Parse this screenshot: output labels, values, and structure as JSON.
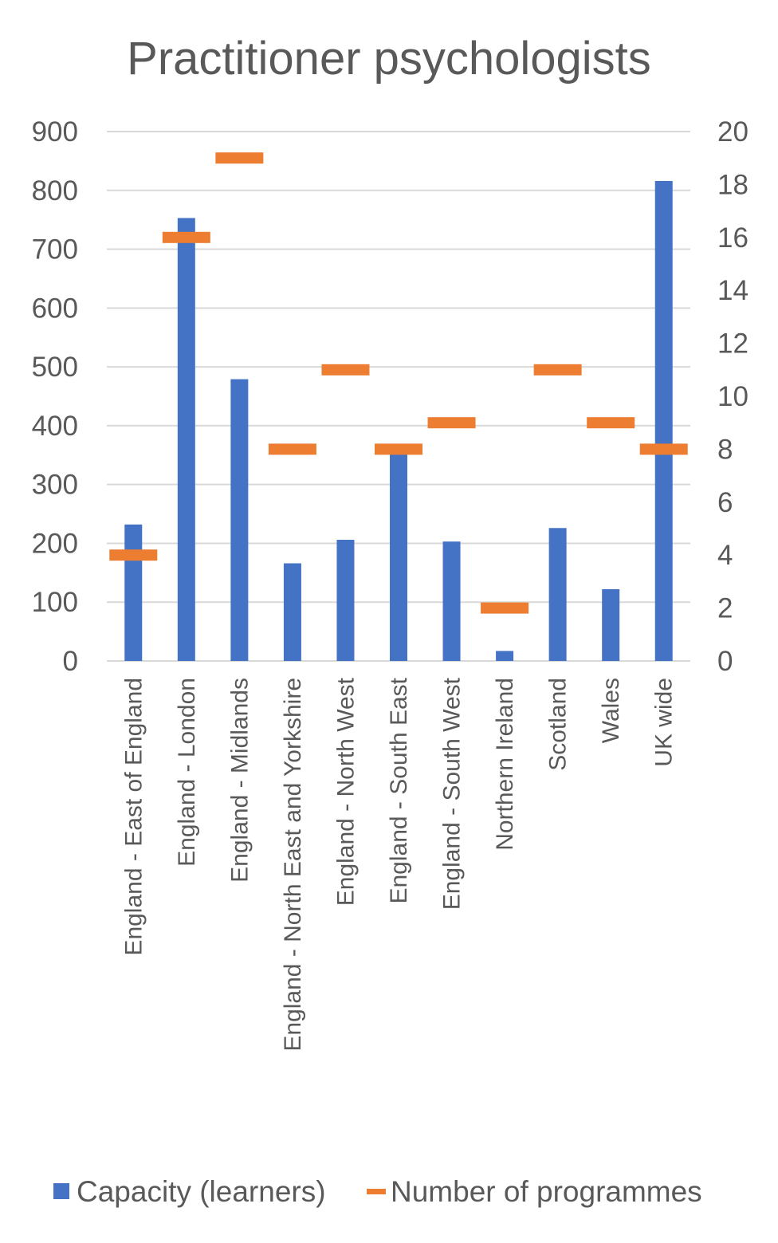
{
  "chart_data": {
    "type": "bar",
    "title": "Practitioner psychologists",
    "categories": [
      "England - East of England",
      "England - London",
      "England - Midlands",
      "England - North East and Yorkshire",
      "England - North West",
      "England - South East",
      "England - South West",
      "Northern Ireland",
      "Scotland",
      "Wales",
      "UK wide"
    ],
    "series": [
      {
        "name": "Capacity (learners)",
        "axis": "left",
        "style": "bar",
        "color": "#4472C4",
        "values": [
          232,
          753,
          479,
          166,
          206,
          355,
          203,
          17,
          226,
          122,
          816
        ]
      },
      {
        "name": "Number of programmes",
        "axis": "right",
        "style": "marker",
        "color": "#ED7D31",
        "values": [
          4,
          16,
          19,
          8,
          11,
          8,
          9,
          2,
          11,
          9,
          8
        ]
      }
    ],
    "y_left": {
      "min": 0,
      "max": 900,
      "ticks": [
        "0",
        "100",
        "200",
        "300",
        "400",
        "500",
        "600",
        "700",
        "800",
        "900"
      ]
    },
    "y_right": {
      "min": 0,
      "max": 20,
      "ticks": [
        "0",
        "2",
        "4",
        "6",
        "8",
        "10",
        "12",
        "14",
        "16",
        "18",
        "20"
      ]
    },
    "grid": true,
    "legend": "bottom"
  }
}
